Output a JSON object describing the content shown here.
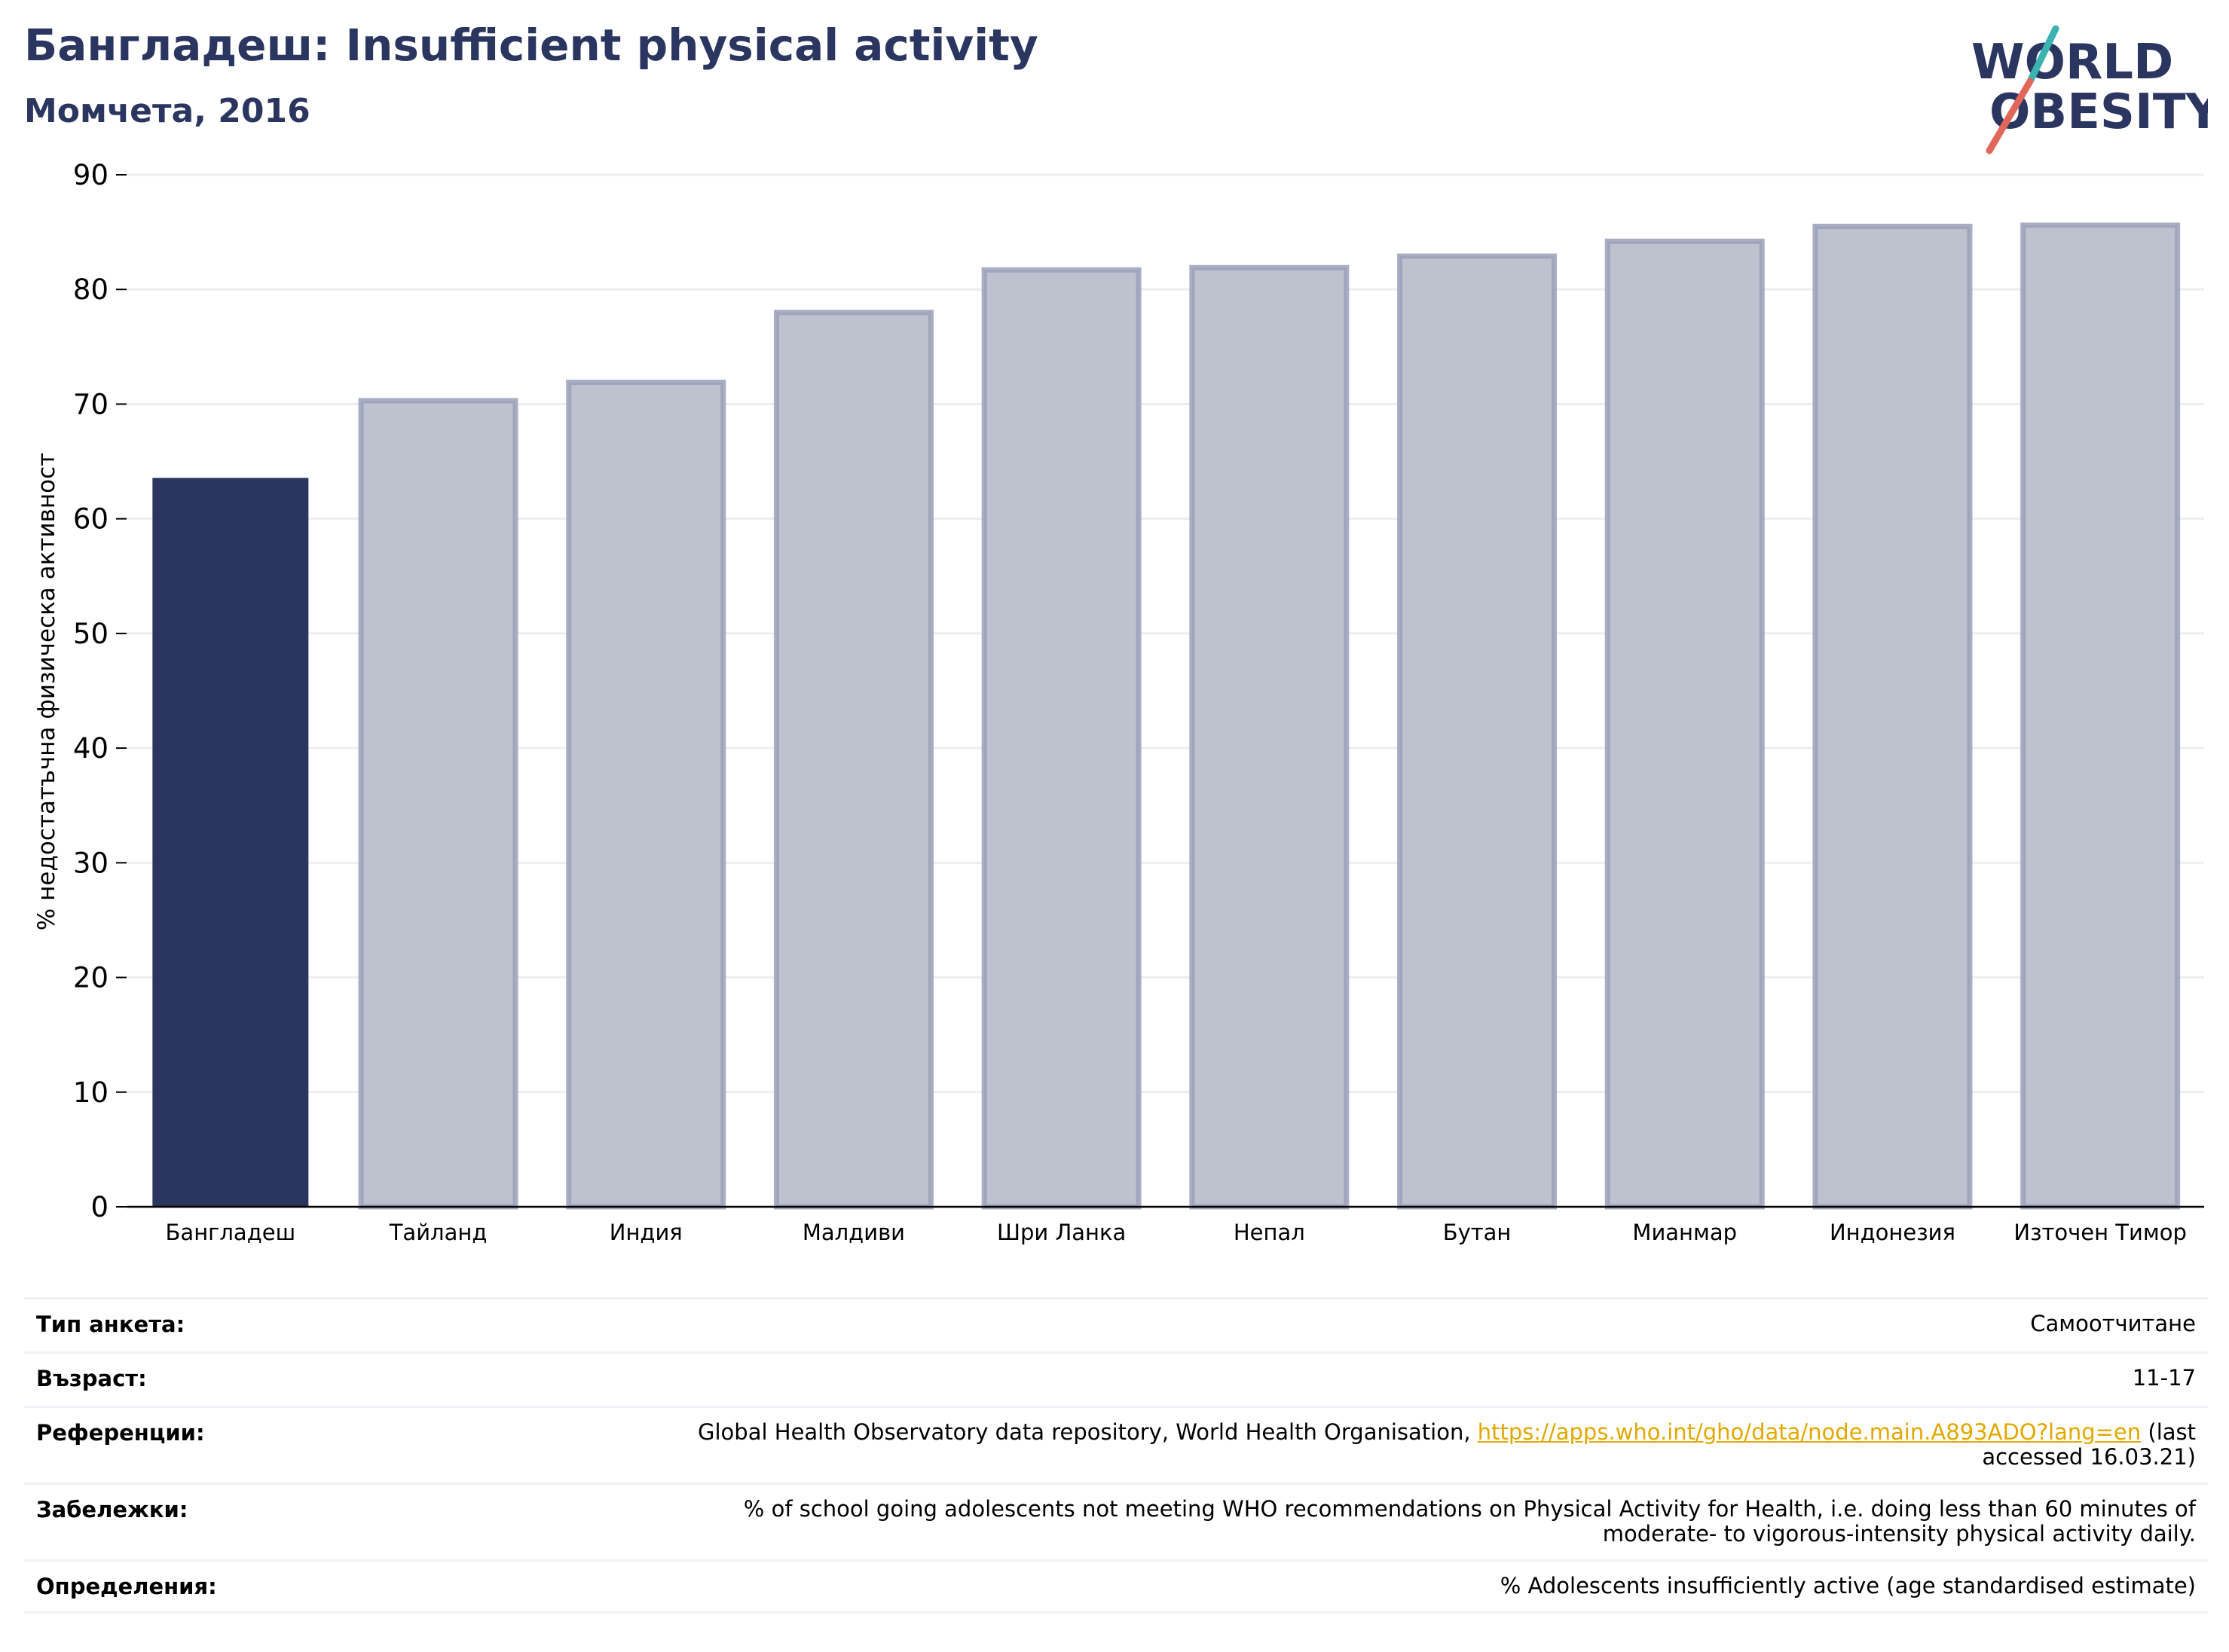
{
  "header": {
    "title": "Бангладеш: Insufficient physical activity",
    "subtitle": "Момчета, 2016"
  },
  "logo": {
    "line1": "WORLD",
    "line2": "OBESITY",
    "colors": {
      "text": "#2b3660",
      "slash_teal": "#3bb3b0",
      "slash_red": "#e2665a"
    }
  },
  "chart_data": {
    "type": "bar",
    "title": "",
    "xlabel": "",
    "ylabel": "% недостатъчна физическа активност",
    "categories": [
      "Бангладеш",
      "Тайланд",
      "Индия",
      "Малдиви",
      "Шри Ланка",
      "Непал",
      "Бутан",
      "Мианмар",
      "Индонезия",
      "Източен Тимор"
    ],
    "values": [
      63.5,
      70.3,
      71.9,
      78.0,
      81.7,
      81.9,
      82.9,
      84.2,
      85.5,
      85.6
    ],
    "highlight_index": 0,
    "ylim": [
      0,
      90
    ],
    "yticks": [
      0,
      10,
      20,
      30,
      40,
      50,
      60,
      70,
      80,
      90
    ],
    "grid": true,
    "legend": "none",
    "colors": {
      "highlight": "#2b3660",
      "other_fill": "#bec1ce",
      "other_stroke": "#9aa0b8",
      "grid": "#eceef2"
    }
  },
  "meta": {
    "survey_type": {
      "label": "Тип анкета:",
      "value": "Самоотчитане"
    },
    "age": {
      "label": "Възраст:",
      "value": "11-17"
    },
    "references": {
      "label": "Референции:",
      "text_before": "Global Health Observatory data repository, World Health Organisation, ",
      "link": "https://apps.who.int/gho/data/node.main.A893ADO?lang=en",
      "text_after": " (last accessed 16.03.21)"
    },
    "notes": {
      "label": "Забележки:",
      "value": "% of school going adolescents not meeting WHO recommendations on Physical Activity for Health, i.e. doing less than 60 minutes of moderate- to vigorous-intensity physical activity daily."
    },
    "definitions": {
      "label": "Определения:",
      "value": "% Adolescents insufficiently active (age standardised estimate)"
    }
  }
}
